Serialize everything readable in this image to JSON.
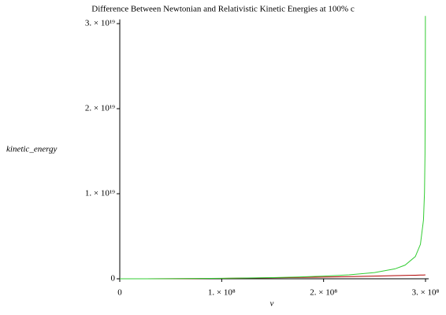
{
  "chart_data": {
    "type": "line",
    "title": "Difference Between Newtonian and Relativistic Kinetic Energies at 100% c",
    "x_label": "v",
    "y_label": "kinetic_energy",
    "x": [
      0,
      25000000,
      50000000,
      75000000,
      100000000,
      125000000,
      150000000,
      175000000,
      200000000,
      225000000,
      250000000,
      270000000,
      280000000,
      290000000,
      295000000,
      298000000,
      299000000,
      299500000,
      299800000,
      299850000,
      299880000
    ],
    "series": [
      {
        "color": "#b00000",
        "values": [
          0,
          3125000000000000,
          12500000000000000,
          28125000000000000,
          50000000000000000,
          78125000000000000,
          112500000000000000,
          153125000000000000,
          200000000000000000,
          253125000000000000,
          312500000000000000,
          364500000000000000,
          392000000000000000,
          420500000000000000,
          435125000000000000,
          444020000000000000,
          447005000000000000,
          448500000000000000,
          449400000000000000,
          449550000000000000,
          449640000000000000
        ]
      },
      {
        "color": "#33cc33",
        "values": [
          0,
          3140000000000000,
          12770000000000000,
          29520000000000000,
          54590000000000000,
          90000000000000000,
          139200000000000000,
          208100000000000000,
          307500000000000000,
          460700000000000000,
          728200000000000000,
          1164800000000000000,
          1606900000000000000,
          2614000000000000000,
          4050000000000000000,
          6907000000000000000,
          10128000000000000000,
          14697000000000000000,
          23750000000000000000,
          27560000000000000000,
          30900000000000000000
        ]
      }
    ],
    "xlim": [
      0,
      300000000
    ],
    "xticks": [
      0,
      {
        "value": 100000000,
        "label": "1. × 10⁸"
      },
      {
        "value": 200000000,
        "label": "2. × 10⁸"
      },
      {
        "value": 300000000,
        "label": "3. × 10⁸"
      }
    ],
    "ylim": [
      0,
      30500000000000000000
    ],
    "yticks": [
      0,
      {
        "value": 10000000000000000000,
        "label": "1. × 10¹⁹"
      },
      {
        "value": 20000000000000000000,
        "label": "2. × 10¹⁹"
      },
      {
        "value": 30000000000000000000,
        "label": "3. × 10¹⁹"
      }
    ],
    "grid": false
  }
}
